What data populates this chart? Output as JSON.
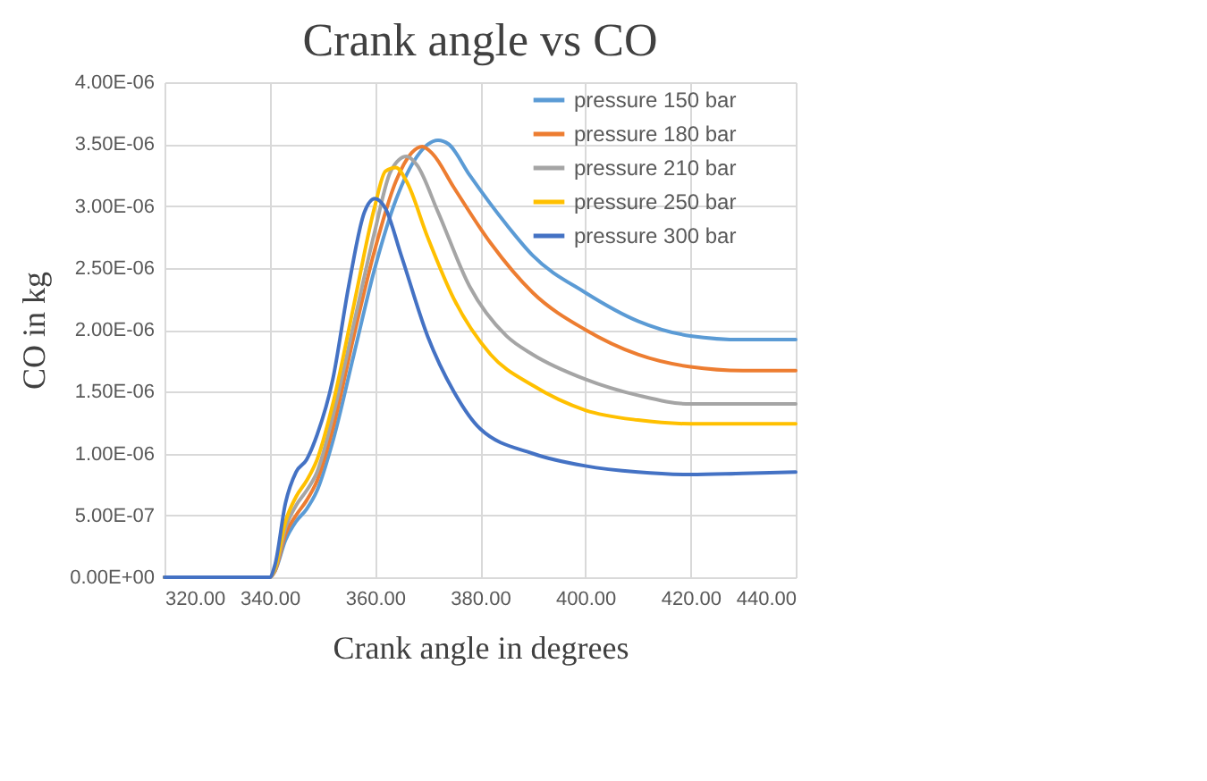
{
  "chart_data": {
    "type": "line",
    "title": "Crank angle vs CO",
    "xlabel": "Crank angle in degrees",
    "ylabel": "CO in kg",
    "xlim": [
      320,
      440
    ],
    "xticks": [
      {
        "value": 320,
        "label": "320.00"
      },
      {
        "value": 340,
        "label": "340.00"
      },
      {
        "value": 360,
        "label": "360.00"
      },
      {
        "value": 380,
        "label": "380.00"
      },
      {
        "value": 400,
        "label": "400.00"
      },
      {
        "value": 420,
        "label": "420.00"
      },
      {
        "value": 440,
        "label": "440.00"
      }
    ],
    "ylim": [
      0,
      4e-06
    ],
    "yticks": [
      {
        "value": 0,
        "label": "0.00E+00"
      },
      {
        "value": 5e-07,
        "label": "5.00E-07"
      },
      {
        "value": 1e-06,
        "label": "1.00E-06"
      },
      {
        "value": 1.5e-06,
        "label": "1.50E-06"
      },
      {
        "value": 2e-06,
        "label": "2.00E-06"
      },
      {
        "value": 2.5e-06,
        "label": "2.50E-06"
      },
      {
        "value": 3e-06,
        "label": "3.00E-06"
      },
      {
        "value": 3.5e-06,
        "label": "3.50E-06"
      },
      {
        "value": 4e-06,
        "label": "4.00E-06"
      }
    ],
    "grid": true,
    "legend": "top right",
    "series": [
      {
        "name": "pressure 150 bar",
        "color": "#5b9bd5",
        "x": [
          320,
          340,
          341,
          343,
          345,
          347,
          349,
          352,
          356,
          360,
          364,
          368,
          372,
          374,
          378,
          385,
          390,
          400,
          410,
          420,
          430,
          440
        ],
        "values": [
          0,
          0,
          5e-08,
          3e-07,
          4.5e-07,
          5.5e-07,
          7e-07,
          1.1e-06,
          1.8e-06,
          2.5e-06,
          3.05e-06,
          3.4e-06,
          3.53e-06,
          3.5e-06,
          3.25e-06,
          2.85e-06,
          2.6e-06,
          2.3e-06,
          2.07e-06,
          1.95e-06,
          1.92e-06,
          1.92e-06
        ]
      },
      {
        "name": "pressure 180 bar",
        "color": "#ed7d31",
        "x": [
          320,
          340,
          341,
          343,
          345,
          347,
          349,
          352,
          356,
          360,
          364,
          367,
          369,
          371,
          375,
          382,
          390,
          400,
          410,
          420,
          430,
          440
        ],
        "values": [
          0,
          0,
          5e-08,
          3.5e-07,
          5e-07,
          6.2e-07,
          7.8e-07,
          1.2e-06,
          1.95e-06,
          2.65e-06,
          3.2e-06,
          3.43e-06,
          3.48e-06,
          3.42e-06,
          3.15e-06,
          2.7e-06,
          2.3e-06,
          2e-06,
          1.8e-06,
          1.7e-06,
          1.67e-06,
          1.67e-06
        ]
      },
      {
        "name": "pressure 210 bar",
        "color": "#a5a5a5",
        "x": [
          320,
          340,
          341,
          343,
          345,
          347,
          349,
          352,
          356,
          360,
          363,
          366,
          368,
          372,
          378,
          385,
          390,
          400,
          410,
          420,
          430,
          440
        ],
        "values": [
          0,
          0,
          6e-08,
          4e-07,
          5.8e-07,
          7e-07,
          8.5e-07,
          1.3e-06,
          2.05e-06,
          2.8e-06,
          3.28e-06,
          3.4e-06,
          3.33e-06,
          2.95e-06,
          2.35e-06,
          1.95e-06,
          1.8e-06,
          1.6e-06,
          1.47e-06,
          1.4e-06,
          1.4e-06,
          1.4e-06
        ]
      },
      {
        "name": "pressure 250 bar",
        "color": "#ffc000",
        "x": [
          320,
          340,
          341,
          343,
          345,
          347,
          349,
          352,
          356,
          360,
          362,
          364,
          366,
          370,
          375,
          382,
          390,
          400,
          410,
          420,
          430,
          440
        ],
        "values": [
          0,
          0,
          7e-08,
          4.5e-07,
          6.5e-07,
          7.8e-07,
          9.5e-07,
          1.4e-06,
          2.2e-06,
          3e-06,
          3.28e-06,
          3.31e-06,
          3.2e-06,
          2.75e-06,
          2.25e-06,
          1.8e-06,
          1.55e-06,
          1.35e-06,
          1.27e-06,
          1.24e-06,
          1.24e-06,
          1.24e-06
        ]
      },
      {
        "name": "pressure 300 bar",
        "color": "#4472c4",
        "x": [
          320,
          340,
          341,
          343,
          345,
          347,
          349,
          352,
          355,
          358,
          360,
          362,
          365,
          370,
          375,
          380,
          390,
          400,
          410,
          420,
          430,
          440
        ],
        "values": [
          0,
          0,
          1e-07,
          6e-07,
          8.5e-07,
          9.5e-07,
          1.15e-06,
          1.6e-06,
          2.35e-06,
          2.95e-06,
          3.06e-06,
          2.98e-06,
          2.6e-06,
          1.95e-06,
          1.5e-06,
          1.2e-06,
          1e-06,
          9e-07,
          8.5e-07,
          8.3e-07,
          8.4e-07,
          8.5e-07
        ]
      }
    ]
  }
}
